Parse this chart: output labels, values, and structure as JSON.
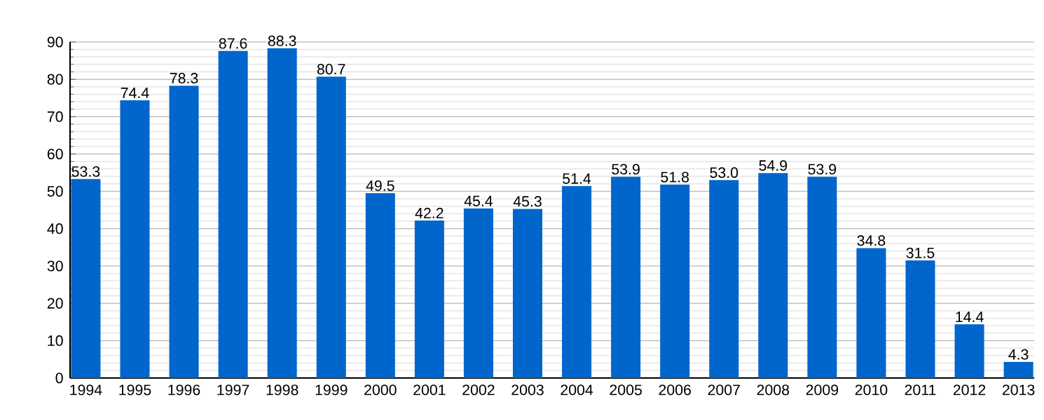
{
  "chart_data": {
    "type": "bar",
    "categories": [
      "1994",
      "1995",
      "1996",
      "1997",
      "1998",
      "1999",
      "2000",
      "2001",
      "2002",
      "2003",
      "2004",
      "2005",
      "2006",
      "2007",
      "2008",
      "2009",
      "2010",
      "2011",
      "2012",
      "2013"
    ],
    "values": [
      53.3,
      74.4,
      78.3,
      87.6,
      88.3,
      80.7,
      49.5,
      42.2,
      45.4,
      45.3,
      51.4,
      53.9,
      51.8,
      53.0,
      54.9,
      53.9,
      34.8,
      31.5,
      14.4,
      4.3
    ],
    "color": "#0066cc",
    "ylim": [
      0,
      90
    ],
    "yticks": [
      0,
      10,
      20,
      30,
      40,
      50,
      60,
      70,
      80,
      90
    ],
    "value_labels": [
      "53.3",
      "74.4",
      "78.3",
      "87.6",
      "88.3",
      "80.7",
      "49.5",
      "42.2",
      "45.4",
      "45.3",
      "51.4",
      "53.9",
      "51.8",
      "53.0",
      "54.9",
      "53.9",
      "34.8",
      "31.5",
      "14.4",
      "4.3"
    ],
    "grid": "y"
  }
}
